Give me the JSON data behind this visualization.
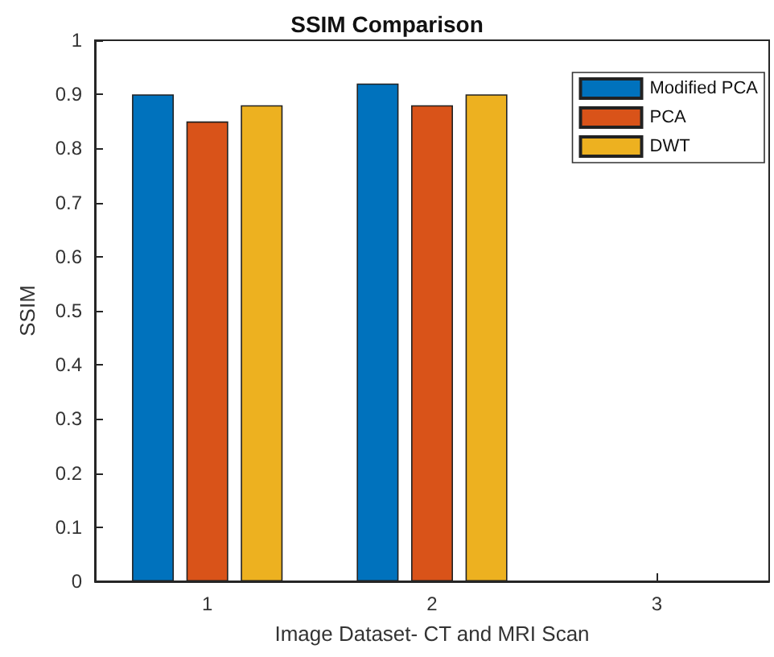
{
  "chart_data": {
    "type": "bar",
    "title": "SSIM Comparison",
    "xlabel": "Image Dataset- CT and MRI Scan",
    "ylabel": "SSIM",
    "categories": [
      "1",
      "2",
      "3"
    ],
    "series": [
      {
        "name": "Modified PCA",
        "color": "#0072bd",
        "values": [
          0.9,
          0.92,
          null
        ]
      },
      {
        "name": "PCA",
        "color": "#d95319",
        "values": [
          0.85,
          0.88,
          null
        ]
      },
      {
        "name": "DWT",
        "color": "#edb120",
        "values": [
          0.88,
          0.9,
          null
        ]
      }
    ],
    "ylim": [
      0,
      1
    ],
    "yticks": [
      0,
      0.1,
      0.2,
      0.3,
      0.4,
      0.5,
      0.6,
      0.7,
      0.8,
      0.9,
      1
    ],
    "grid": false,
    "legend": "top right"
  }
}
